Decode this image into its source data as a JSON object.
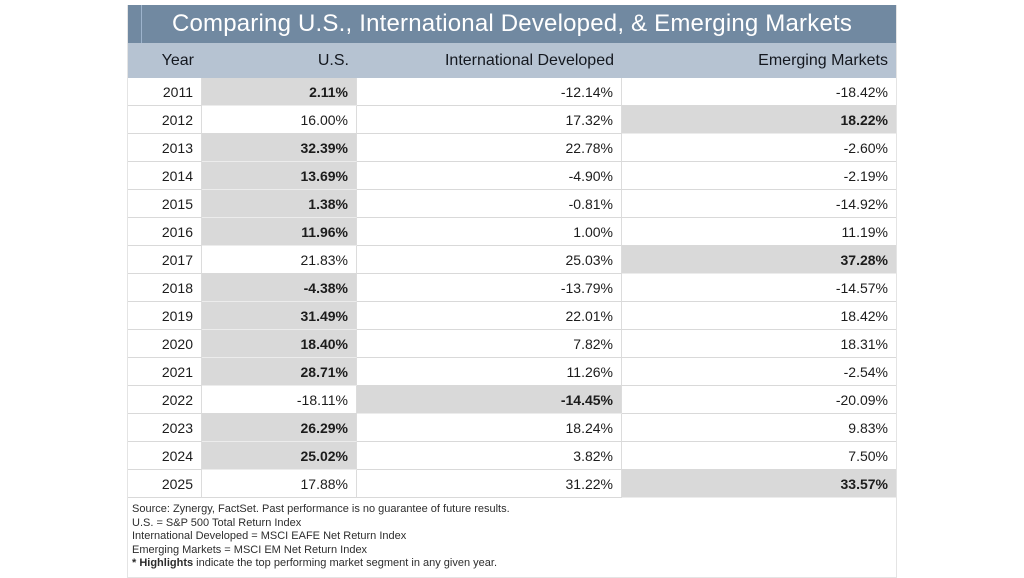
{
  "title": "Comparing U.S., International Developed, & Emerging Markets",
  "header": {
    "year": "Year",
    "us": "U.S.",
    "intl": "International Developed",
    "em": "Emerging Markets"
  },
  "rows": [
    {
      "year": "2011",
      "us": "2.11%",
      "intl": "-12.14%",
      "em": "-18.42%",
      "top": "us"
    },
    {
      "year": "2012",
      "us": "16.00%",
      "intl": "17.32%",
      "em": "18.22%",
      "top": "em"
    },
    {
      "year": "2013",
      "us": "32.39%",
      "intl": "22.78%",
      "em": "-2.60%",
      "top": "us"
    },
    {
      "year": "2014",
      "us": "13.69%",
      "intl": "-4.90%",
      "em": "-2.19%",
      "top": "us"
    },
    {
      "year": "2015",
      "us": "1.38%",
      "intl": "-0.81%",
      "em": "-14.92%",
      "top": "us"
    },
    {
      "year": "2016",
      "us": "11.96%",
      "intl": "1.00%",
      "em": "11.19%",
      "top": "us"
    },
    {
      "year": "2017",
      "us": "21.83%",
      "intl": "25.03%",
      "em": "37.28%",
      "top": "em"
    },
    {
      "year": "2018",
      "us": "-4.38%",
      "intl": "-13.79%",
      "em": "-14.57%",
      "top": "us"
    },
    {
      "year": "2019",
      "us": "31.49%",
      "intl": "22.01%",
      "em": "18.42%",
      "top": "us"
    },
    {
      "year": "2020",
      "us": "18.40%",
      "intl": "7.82%",
      "em": "18.31%",
      "top": "us"
    },
    {
      "year": "2021",
      "us": "28.71%",
      "intl": "11.26%",
      "em": "-2.54%",
      "top": "us"
    },
    {
      "year": "2022",
      "us": "-18.11%",
      "intl": "-14.45%",
      "em": "-20.09%",
      "top": "intl"
    },
    {
      "year": "2023",
      "us": "26.29%",
      "intl": "18.24%",
      "em": "9.83%",
      "top": "us"
    },
    {
      "year": "2024",
      "us": "25.02%",
      "intl": "3.82%",
      "em": "7.50%",
      "top": "us"
    },
    {
      "year": "2025",
      "us": "17.88%",
      "intl": "31.22%",
      "em": "33.57%",
      "top": "em"
    }
  ],
  "footnotes": [
    {
      "bold": "",
      "text": "Source: Zynergy, FactSet. Past performance is no guarantee of future results."
    },
    {
      "bold": "",
      "text": "U.S. = S&P 500 Total Return Index"
    },
    {
      "bold": "",
      "text": "International Developed = MSCI EAFE Net Return Index"
    },
    {
      "bold": "",
      "text": "Emerging Markets = MSCI EM Net Return Index"
    },
    {
      "bold": "* Highlights",
      "text": " indicate the top performing market segment in any given year."
    }
  ],
  "colors": {
    "title_bg": "#7189A1",
    "title_text": "#FFFFFF",
    "title_divider": "#9DB3CC",
    "header_bg": "#B6C3D2",
    "highlight_bg": "#D9D9D9",
    "row_border": "#D9D9D9",
    "text_dark": "#1C1C1C"
  },
  "chart_data": {
    "type": "table",
    "title": "Comparing U.S., International Developed, & Emerging Markets",
    "columns": [
      "Year",
      "U.S.",
      "International Developed",
      "Emerging Markets"
    ],
    "categories": [
      2011,
      2012,
      2013,
      2014,
      2015,
      2016,
      2017,
      2018,
      2019,
      2020,
      2021,
      2022,
      2023,
      2024,
      2025
    ],
    "series": [
      {
        "name": "U.S.",
        "values": [
          2.11,
          16.0,
          32.39,
          13.69,
          1.38,
          11.96,
          21.83,
          -4.38,
          31.49,
          18.4,
          28.71,
          -18.11,
          26.29,
          25.02,
          17.88
        ]
      },
      {
        "name": "International Developed",
        "values": [
          -12.14,
          17.32,
          22.78,
          -4.9,
          -0.81,
          1.0,
          25.03,
          -13.79,
          22.01,
          7.82,
          11.26,
          -14.45,
          18.24,
          3.82,
          31.22
        ]
      },
      {
        "name": "Emerging Markets",
        "values": [
          -18.42,
          18.22,
          -2.6,
          -2.19,
          -14.92,
          11.19,
          37.28,
          -14.57,
          18.42,
          18.31,
          -2.54,
          -20.09,
          9.83,
          7.5,
          33.57
        ]
      }
    ],
    "top_performer_by_year": [
      "U.S.",
      "Emerging Markets",
      "U.S.",
      "U.S.",
      "U.S.",
      "U.S.",
      "Emerging Markets",
      "U.S.",
      "U.S.",
      "U.S.",
      "U.S.",
      "International Developed",
      "U.S.",
      "U.S.",
      "Emerging Markets"
    ],
    "units": "percent",
    "notes": "Highlighted (gray, bold) cell marks top performing segment each year"
  }
}
